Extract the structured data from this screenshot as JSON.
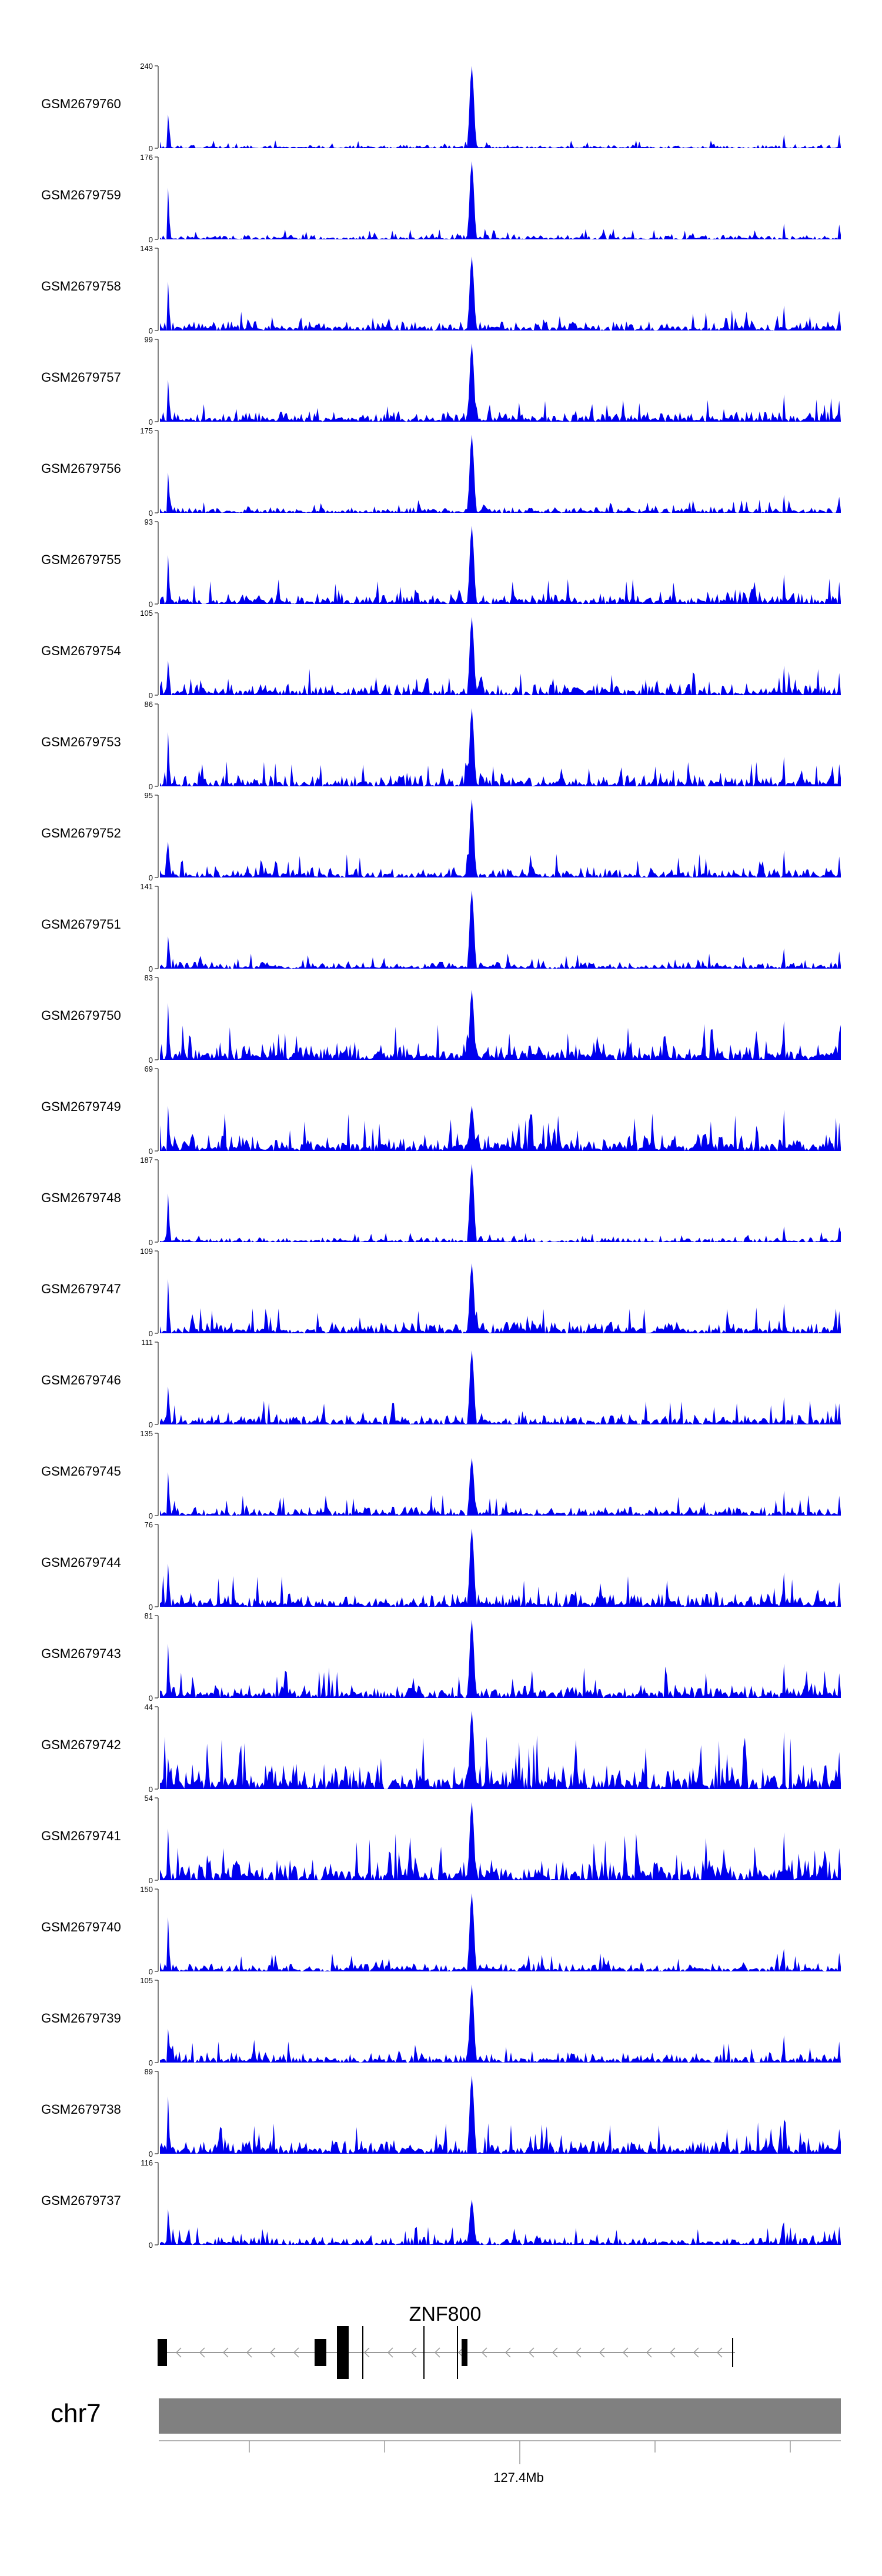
{
  "chart_data": {
    "type": "area",
    "title": "",
    "xlabel": "",
    "ylabel": "",
    "fill_color": "#0000ee",
    "axis_color": "#000000",
    "ymin": 0,
    "peak_position": 0.457,
    "tracks": [
      {
        "name": "GSM2679760",
        "ymax": "240",
        "seed": 11,
        "noise": 0.03,
        "peak": 1.0
      },
      {
        "name": "GSM2679759",
        "ymax": "176",
        "seed": 12,
        "noise": 0.04,
        "peak": 0.95
      },
      {
        "name": "GSM2679758",
        "ymax": "143",
        "seed": 13,
        "noise": 0.08,
        "peak": 0.9
      },
      {
        "name": "GSM2679757",
        "ymax": "99",
        "seed": 14,
        "noise": 0.09,
        "peak": 0.95
      },
      {
        "name": "GSM2679756",
        "ymax": "175",
        "seed": 15,
        "noise": 0.05,
        "peak": 0.95
      },
      {
        "name": "GSM2679755",
        "ymax": "93",
        "seed": 16,
        "noise": 0.1,
        "peak": 0.95
      },
      {
        "name": "GSM2679754",
        "ymax": "105",
        "seed": 17,
        "noise": 0.1,
        "peak": 0.95
      },
      {
        "name": "GSM2679753",
        "ymax": "86",
        "seed": 18,
        "noise": 0.1,
        "peak": 0.95
      },
      {
        "name": "GSM2679752",
        "ymax": "95",
        "seed": 19,
        "noise": 0.09,
        "peak": 0.95
      },
      {
        "name": "GSM2679751",
        "ymax": "141",
        "seed": 20,
        "noise": 0.06,
        "peak": 0.95
      },
      {
        "name": "GSM2679750",
        "ymax": "83",
        "seed": 21,
        "noise": 0.14,
        "peak": 0.85
      },
      {
        "name": "GSM2679749",
        "ymax": "69",
        "seed": 22,
        "noise": 0.15,
        "peak": 0.55
      },
      {
        "name": "GSM2679748",
        "ymax": "187",
        "seed": 23,
        "noise": 0.04,
        "peak": 0.95
      },
      {
        "name": "GSM2679747",
        "ymax": "109",
        "seed": 24,
        "noise": 0.1,
        "peak": 0.85
      },
      {
        "name": "GSM2679746",
        "ymax": "111",
        "seed": 25,
        "noise": 0.09,
        "peak": 0.9
      },
      {
        "name": "GSM2679745",
        "ymax": "135",
        "seed": 26,
        "noise": 0.08,
        "peak": 0.7
      },
      {
        "name": "GSM2679744",
        "ymax": "76",
        "seed": 27,
        "noise": 0.12,
        "peak": 0.95
      },
      {
        "name": "GSM2679743",
        "ymax": "81",
        "seed": 28,
        "noise": 0.12,
        "peak": 0.95
      },
      {
        "name": "GSM2679742",
        "ymax": "44",
        "seed": 29,
        "noise": 0.22,
        "peak": 0.95
      },
      {
        "name": "GSM2679741",
        "ymax": "54",
        "seed": 30,
        "noise": 0.18,
        "peak": 0.95
      },
      {
        "name": "GSM2679740",
        "ymax": "150",
        "seed": 31,
        "noise": 0.07,
        "peak": 0.95
      },
      {
        "name": "GSM2679739",
        "ymax": "105",
        "seed": 32,
        "noise": 0.09,
        "peak": 0.95
      },
      {
        "name": "GSM2679738",
        "ymax": "89",
        "seed": 33,
        "noise": 0.12,
        "peak": 0.95
      },
      {
        "name": "GSM2679737",
        "ymax": "116",
        "seed": 34,
        "noise": 0.07,
        "peak": 0.55
      }
    ],
    "gene": {
      "name": "ZNF800"
    },
    "chromosome": {
      "label": "chr7"
    },
    "axis": {
      "tick_label": "127.4Mb"
    }
  }
}
